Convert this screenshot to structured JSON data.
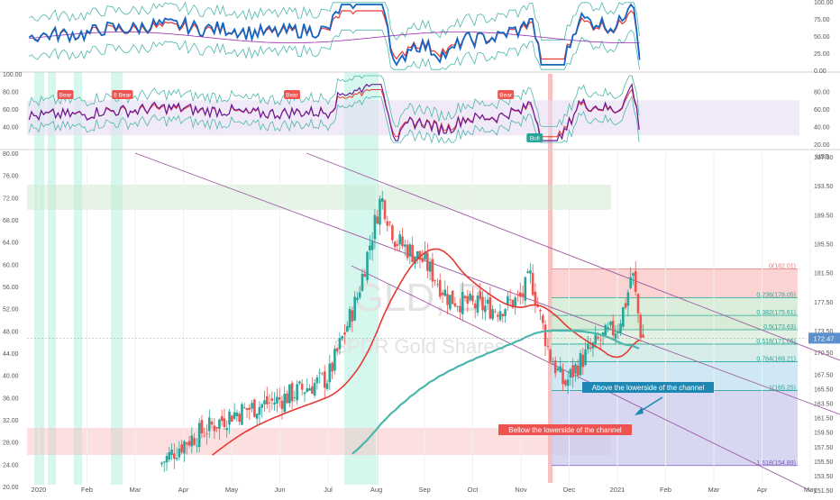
{
  "colors": {
    "price_up": "#26a69a",
    "price_down": "#ef5350",
    "ma_red": "#e53935",
    "ma_teal": "#4db6ac",
    "channel": "#9c5aa0",
    "rsi_blue": "#1565c0",
    "highlight_green": "#b2f0e0",
    "highlight_red": "#f4a6a6",
    "label_blue_bg": "#1e88b4",
    "label_red_bg": "#ef5350",
    "last_price_bg": "#5c8fce"
  },
  "watermark": {
    "symbol": "GLD, D",
    "name": "SPDR Gold Shares"
  },
  "price_scale_label": "USD",
  "last_price_label": "172.47",
  "annotations": {
    "above": "Above the lowerside of the channel",
    "below": "Bellow the lowerside of the channel"
  },
  "chart_data": [
    {
      "type": "line",
      "panel": "oscillator-1",
      "ylim": [
        0,
        100
      ],
      "y_ticks": [
        "100.00",
        "75.00",
        "50.00",
        "25.00",
        "0.00"
      ]
    },
    {
      "type": "line",
      "panel": "oscillator-2",
      "ylim": [
        20,
        100
      ],
      "y_ticks_left": [
        "100.00",
        "80.00",
        "60.00",
        "40.00"
      ],
      "y_ticks_right": [
        "80.00",
        "60.00",
        "40.00",
        "20.00"
      ],
      "signals": [
        {
          "text": "Bear",
          "date": "2020-01-17"
        },
        {
          "text": "Bear",
          "date": "2020-02-21"
        },
        {
          "text": "Bear",
          "date": "2020-02-24"
        },
        {
          "text": "Bear",
          "date": "2020-06-08"
        },
        {
          "text": "Bear",
          "date": "2020-10-21"
        },
        {
          "text": "Bull",
          "date": "2020-11-09"
        }
      ]
    },
    {
      "type": "candlestick",
      "panel": "price",
      "ylim_right": [
        152,
        198
      ],
      "ylim_left": [
        20,
        80
      ],
      "x_ticks": [
        "2020",
        "Feb",
        "Mar",
        "Apr",
        "May",
        "Jun",
        "Jul",
        "Aug",
        "Sep",
        "Oct",
        "Nov",
        "Dec",
        "2021",
        "Feb",
        "Mar",
        "Apr",
        "May",
        "Jun"
      ],
      "y_ticks_right": [
        "197.50",
        "193.50",
        "189.50",
        "185.50",
        "181.50",
        "177.50",
        "173.50",
        "170.50",
        "167.50",
        "165.50",
        "163.50",
        "161.50",
        "159.50",
        "157.50",
        "155.50",
        "153.50",
        "151.50"
      ],
      "y_ticks_left": [
        "80.00",
        "76.00",
        "72.00",
        "68.00",
        "64.00",
        "60.00",
        "56.00",
        "52.00",
        "48.00",
        "44.00",
        "40.00",
        "36.00",
        "32.00",
        "28.00",
        "24.00",
        "20.00"
      ],
      "fib_levels": [
        {
          "label": "0(182.01)",
          "value": 182.01
        },
        {
          "label": "0.236(178.05)",
          "value": 178.05
        },
        {
          "label": "0.382(175.61)",
          "value": 175.61
        },
        {
          "label": "0.5(173.63)",
          "value": 173.63
        },
        {
          "label": "0.618(171.65)",
          "value": 171.65
        },
        {
          "label": "0.764(169.21)",
          "value": 169.21
        },
        {
          "label": "1(165.25)",
          "value": 165.25
        },
        {
          "label": "1.618(154.89)",
          "value": 154.89
        }
      ],
      "candles_monthly_summary": [
        {
          "period": "Mar",
          "high": 158,
          "low": 150
        },
        {
          "period": "Apr",
          "high": 165,
          "low": 160
        },
        {
          "period": "May",
          "high": 166,
          "low": 161
        },
        {
          "period": "Jun",
          "high": 167,
          "low": 162
        },
        {
          "period": "Jul",
          "high": 182,
          "low": 167
        },
        {
          "period": "Aug",
          "high": 194,
          "low": 178
        },
        {
          "period": "Sep",
          "high": 185,
          "low": 175
        },
        {
          "period": "Oct",
          "high": 179,
          "low": 175
        },
        {
          "period": "Nov",
          "high": 182,
          "low": 167
        },
        {
          "period": "Dec",
          "high": 177,
          "low": 165
        },
        {
          "period": "2021",
          "high": 182,
          "low": 172.5
        }
      ]
    }
  ]
}
